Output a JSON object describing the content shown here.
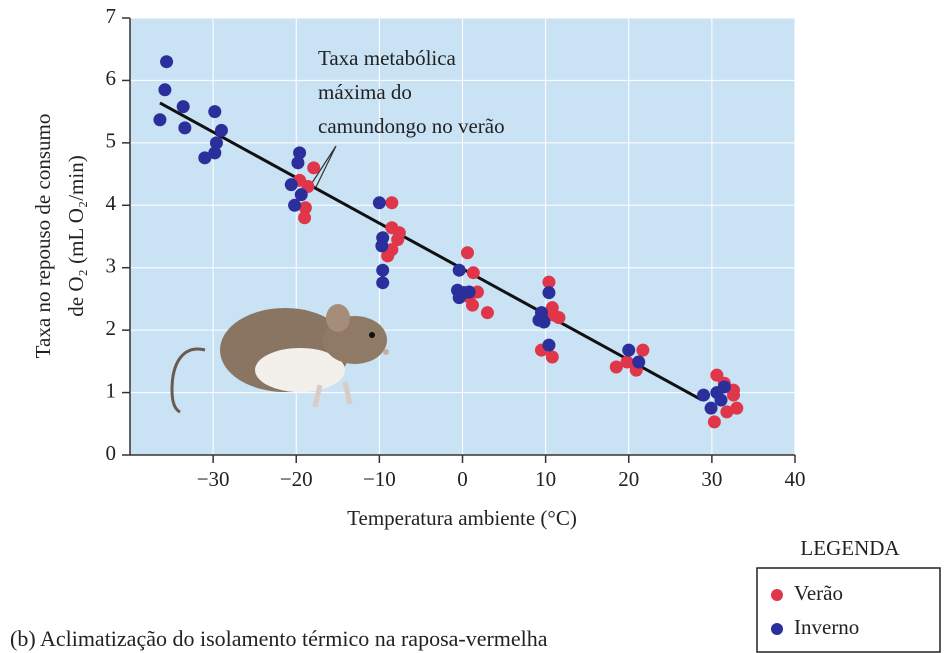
{
  "chart_data": {
    "type": "scatter",
    "xlabel": "Temperatura ambiente (°C)",
    "ylabel": [
      "Taxa no repouso de consumo",
      "de O₂ (mL O₂/min)"
    ],
    "annotation": [
      "Taxa metabólica",
      "máxima do",
      "camundongo no verão"
    ],
    "xlim": [
      -40,
      40
    ],
    "xticks": [
      {
        "value": -30,
        "label": "−30"
      },
      {
        "value": -20,
        "label": "−20"
      },
      {
        "value": -10,
        "label": "−10"
      },
      0,
      10,
      20,
      30,
      40
    ],
    "ylim": [
      0,
      7
    ],
    "yticks": [
      0,
      1,
      2,
      3,
      4,
      5,
      6,
      7
    ],
    "grid": true,
    "legend_title": "LEGENDA",
    "legend_position": "bottom-right",
    "series": [
      {
        "name": "Verão",
        "color": "#e0364a",
        "x": [
          -17.9,
          -19.6,
          -18.6,
          -18.9,
          -19,
          -8.5,
          -8.5,
          -7.6,
          -7.8,
          -8.5,
          -9,
          0.6,
          1.3,
          1.8,
          1.2,
          3.0,
          0.8,
          10.4,
          10.8,
          11.6,
          9.5,
          10.8,
          11,
          18.5,
          20.9,
          21.7,
          19.8,
          30.6,
          31.5,
          32.6,
          33,
          31.8,
          30.3,
          32.6
        ],
        "values": [
          4.6,
          4.4,
          4.3,
          3.96,
          3.8,
          4.04,
          3.64,
          3.56,
          3.45,
          3.29,
          3.19,
          3.24,
          2.92,
          2.61,
          2.4,
          2.28,
          2.53,
          2.77,
          2.36,
          2.2,
          1.68,
          1.57,
          2.24,
          1.41,
          1.36,
          1.68,
          1.49,
          1.28,
          1.15,
          0.96,
          0.75,
          0.69,
          0.53,
          1.04
        ]
      },
      {
        "name": "Inverno",
        "color": "#2b2f9c",
        "x": [
          -35.6,
          -35.8,
          -36.4,
          -33.6,
          -33.4,
          -29.8,
          -29,
          -29.6,
          -29.8,
          -31,
          -19.6,
          -19.8,
          -20.6,
          -19.4,
          -20.2,
          -10,
          -9.6,
          -9.7,
          -9.6,
          -9.6,
          -0.4,
          -0.6,
          0.2,
          -0.4,
          0.8,
          9.5,
          10.4,
          9.8,
          9.2,
          10.4,
          20,
          21.2,
          29,
          29.9,
          30.6,
          31.5,
          31.1
        ],
        "values": [
          6.3,
          5.85,
          5.37,
          5.58,
          5.24,
          5.5,
          5.2,
          5.0,
          4.84,
          4.76,
          4.84,
          4.68,
          4.33,
          4.17,
          4.0,
          4.04,
          3.48,
          3.35,
          2.96,
          2.76,
          2.96,
          2.64,
          2.6,
          2.52,
          2.61,
          2.28,
          2.6,
          2.13,
          2.16,
          1.76,
          1.68,
          1.49,
          0.96,
          0.75,
          1.0,
          1.09,
          0.88
        ]
      }
    ],
    "fit": {
      "color": "#111111",
      "x": [
        -36.4,
        28.8
      ],
      "values": [
        5.64,
        0.88
      ]
    }
  },
  "caption": "(b) Aclimatização do isolamento térmico na raposa-vermelha"
}
